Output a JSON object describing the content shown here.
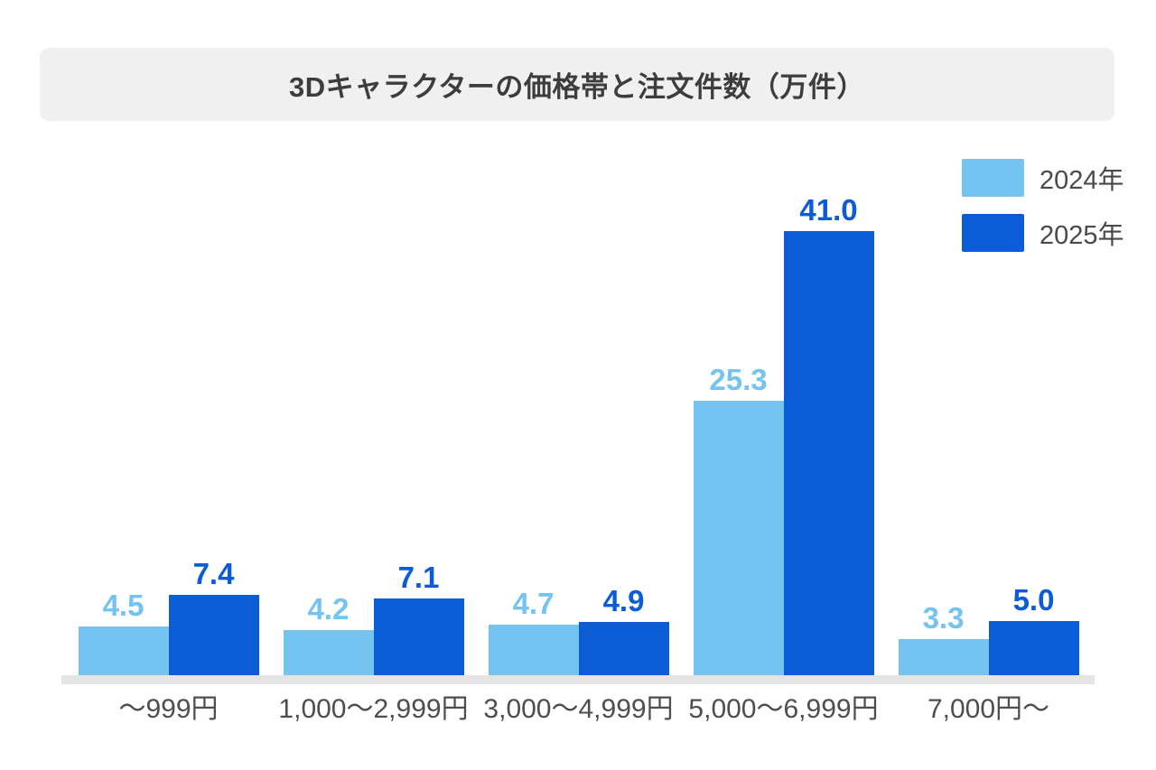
{
  "title": "3Dキャラクターの価格帯と注文件数（万件）",
  "colors": {
    "series_2024": "#75C3F0",
    "series_2025": "#0C5CD7",
    "title_text": "#3d3d3d",
    "category_text": "#4e4e4e",
    "banner_bg": "#f0f0f0",
    "baseline_strip": "#e4e4e4",
    "background": "#ffffff"
  },
  "legend": {
    "position": "top-right",
    "items": [
      {
        "label": "2024年",
        "color": "#75C3F0"
      },
      {
        "label": "2025年",
        "color": "#0C5CD7"
      }
    ]
  },
  "chart_data": {
    "type": "bar",
    "title": "3Dキャラクターの価格帯と注文件数（万件）",
    "categories": [
      "～999円",
      "1,000～2,999円",
      "3,000～4,999円",
      "5,000～6,999円",
      "7,000円～"
    ],
    "series": [
      {
        "name": "2024年",
        "color": "#75C3F0",
        "values": [
          4.5,
          4.2,
          4.7,
          25.3,
          3.3
        ]
      },
      {
        "name": "2025年",
        "color": "#0C5CD7",
        "values": [
          7.4,
          7.1,
          4.9,
          41.0,
          5.0
        ]
      }
    ],
    "value_labels": true,
    "value_label_decimals": 1,
    "xlabel": "",
    "ylabel": "",
    "ylim": [
      0,
      45
    ],
    "grid": false,
    "legend_position": "top-right"
  }
}
